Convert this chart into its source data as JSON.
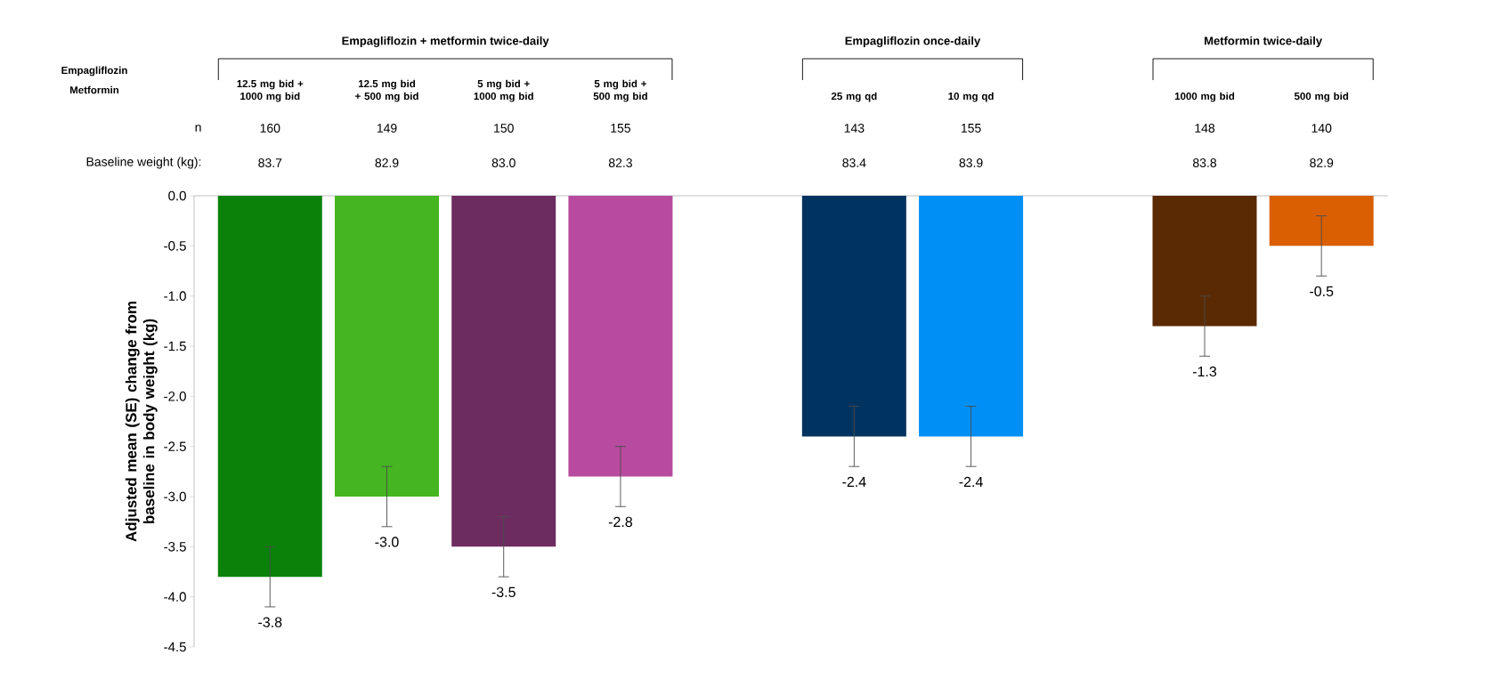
{
  "chart_data": {
    "type": "bar",
    "ylabel": "Adjusted mean (SE) change from baseline in body weight (kg)",
    "categories": [
      "12.5 mg bid + 1000 mg bid",
      "12.5 mg bid + 500 mg bid",
      "5 mg bid + 1000 mg bid",
      "5 mg bid + 500 mg bid",
      null,
      "25 mg qd",
      "10 mg qd",
      null,
      "1000 mg bid",
      "500 mg bid"
    ],
    "values": [
      -3.8,
      -3.0,
      -3.5,
      -2.8,
      null,
      -2.4,
      -2.4,
      null,
      -1.3,
      -0.5
    ],
    "errors": [
      0.3,
      0.3,
      0.3,
      0.3,
      null,
      0.3,
      0.3,
      null,
      0.3,
      0.3
    ],
    "colors": [
      "#0a820a",
      "#45b522",
      "#6d2c60",
      "#b84b9f",
      null,
      "#00335f",
      "#0090f5",
      null,
      "#5a2a04",
      "#d95f02"
    ],
    "value_labels": [
      "-3.8",
      "-3.0",
      "-3.5",
      "-2.8",
      null,
      "-2.4",
      "-2.4",
      null,
      "-1.3",
      "-0.5"
    ],
    "ylim": [
      -4.5,
      0
    ],
    "yticks": [
      {
        "value": -4.5,
        "label": "-4.5"
      },
      {
        "value": -4.0,
        "label": "-4.0"
      },
      {
        "value": -3.5,
        "label": "-3.5"
      },
      {
        "value": -3.0,
        "label": "-3.0"
      },
      {
        "value": -2.5,
        "label": "-2.5"
      },
      {
        "value": -2.0,
        "label": "-2.0"
      },
      {
        "value": -1.5,
        "label": "-1.5"
      },
      {
        "value": -1.0,
        "label": "-1.0"
      },
      {
        "value": -0.5,
        "label": "-0.5"
      },
      {
        "value": 0,
        "label": "0.0"
      }
    ],
    "annotations": [
      "Empagliflozin + metformin twice-daily",
      "Empagliflozin once-daily",
      "Metformin twice-daily",
      "Empagliflozin",
      "Metformin",
      "n",
      "Baseline weight (kg):",
      "160",
      "149",
      "150",
      "155",
      "143",
      "155",
      "148",
      "140",
      "83.7",
      "82.9",
      "83.0",
      "82.3",
      "83.4",
      "83.9",
      "83.8",
      "82.9"
    ]
  }
}
